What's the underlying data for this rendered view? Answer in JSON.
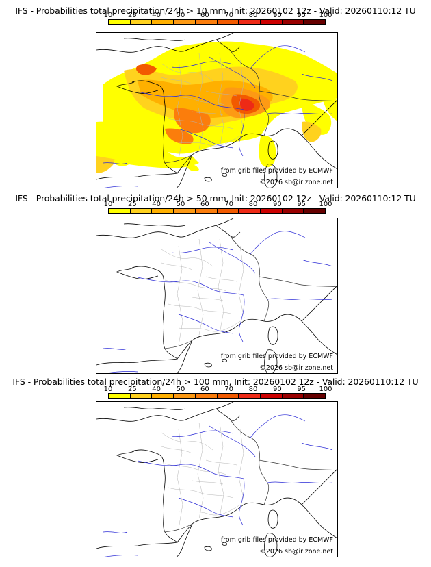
{
  "colorbar": {
    "ticks": [
      "10",
      "25",
      "40",
      "50",
      "60",
      "70",
      "80",
      "90",
      "95",
      "100"
    ],
    "colors": [
      "#ffff00",
      "#ffd21e",
      "#ffb000",
      "#fd9a14",
      "#fb7d0c",
      "#f25a00",
      "#ee2a16",
      "#cc0000",
      "#990000",
      "#660000"
    ]
  },
  "panels": [
    {
      "title": "IFS - Probabilities total precipitation/24h > 10 mm, Init: 20260102 12z - Valid: 20260110:12 TU",
      "source": "from grib files provided by ECMWF",
      "copyright": "©2026 sb@irizone.net",
      "threshold_mm": 10
    },
    {
      "title": "IFS - Probabilities total precipitation/24h > 50 mm, Init: 20260102 12z - Valid: 20260110:12 TU",
      "source": "from grib files provided by ECMWF",
      "copyright": "©2026 sb@irizone.net",
      "threshold_mm": 50
    },
    {
      "title": "IFS - Probabilities total precipitation/24h > 100 mm, Init: 20260102 12z - Valid: 20260110:12 TU",
      "source": "from grib files provided by ECMWF",
      "copyright": "©2026 sb@irizone.net",
      "threshold_mm": 100
    }
  ]
}
